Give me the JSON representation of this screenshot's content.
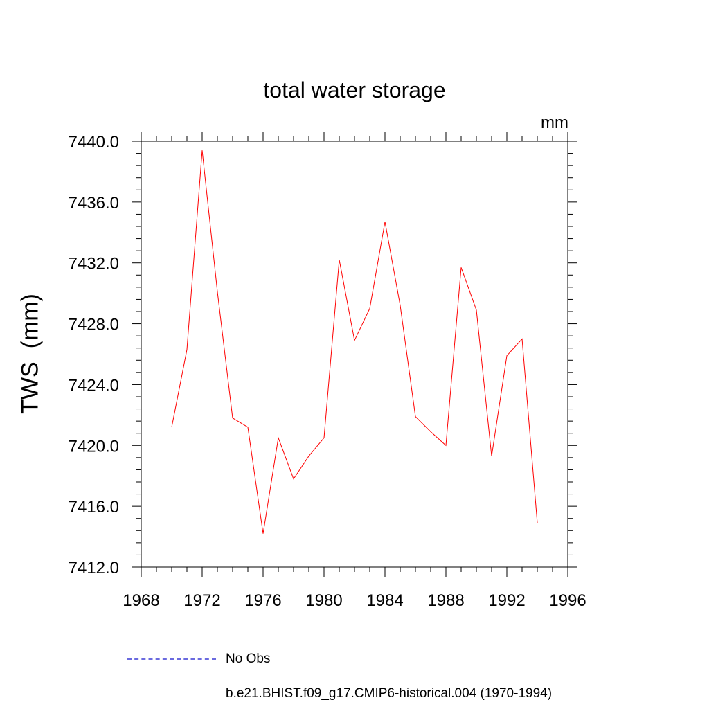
{
  "chart_data": {
    "type": "line",
    "title": "total water storage",
    "units_label": "mm",
    "ylabel": "TWS  (mm)",
    "xlabel": "",
    "xlim": [
      1968,
      1996
    ],
    "ylim": [
      7412.0,
      7440.0
    ],
    "x_ticks": [
      1968,
      1972,
      1976,
      1980,
      1984,
      1988,
      1992,
      1996
    ],
    "y_ticks": [
      7412.0,
      7416.0,
      7420.0,
      7424.0,
      7428.0,
      7432.0,
      7436.0,
      7440.0
    ],
    "y_tick_labels": [
      "7412.0",
      "7416.0",
      "7420.0",
      "7424.0",
      "7428.0",
      "7432.0",
      "7436.0",
      "7440.0"
    ],
    "grid": false,
    "legend_placement": "bottom",
    "series": [
      {
        "name": "b.e21.BHIST.f09_g17.CMIP6-historical.004 (1970-1994)",
        "color": "#ff0000",
        "style": "solid",
        "x": [
          1970,
          1971,
          1972,
          1973,
          1974,
          1975,
          1976,
          1977,
          1978,
          1979,
          1980,
          1981,
          1982,
          1983,
          1984,
          1985,
          1986,
          1987,
          1988,
          1989,
          1990,
          1991,
          1992,
          1993,
          1994
        ],
        "y": [
          7421.2,
          7426.3,
          7439.4,
          7430.1,
          7421.8,
          7421.2,
          7414.2,
          7420.5,
          7417.8,
          7419.3,
          7420.5,
          7432.2,
          7426.9,
          7429.0,
          7434.7,
          7429.2,
          7421.9,
          7420.9,
          7420.0,
          7431.7,
          7428.9,
          7419.3,
          7425.9,
          7427.0,
          7414.9
        ]
      }
    ],
    "legend": [
      {
        "label": "No Obs",
        "color": "#6a6adf",
        "style": "dashed"
      },
      {
        "label": "b.e21.BHIST.f09_g17.CMIP6-historical.004 (1970-1994)",
        "color": "#ff0000",
        "style": "solid"
      }
    ]
  }
}
